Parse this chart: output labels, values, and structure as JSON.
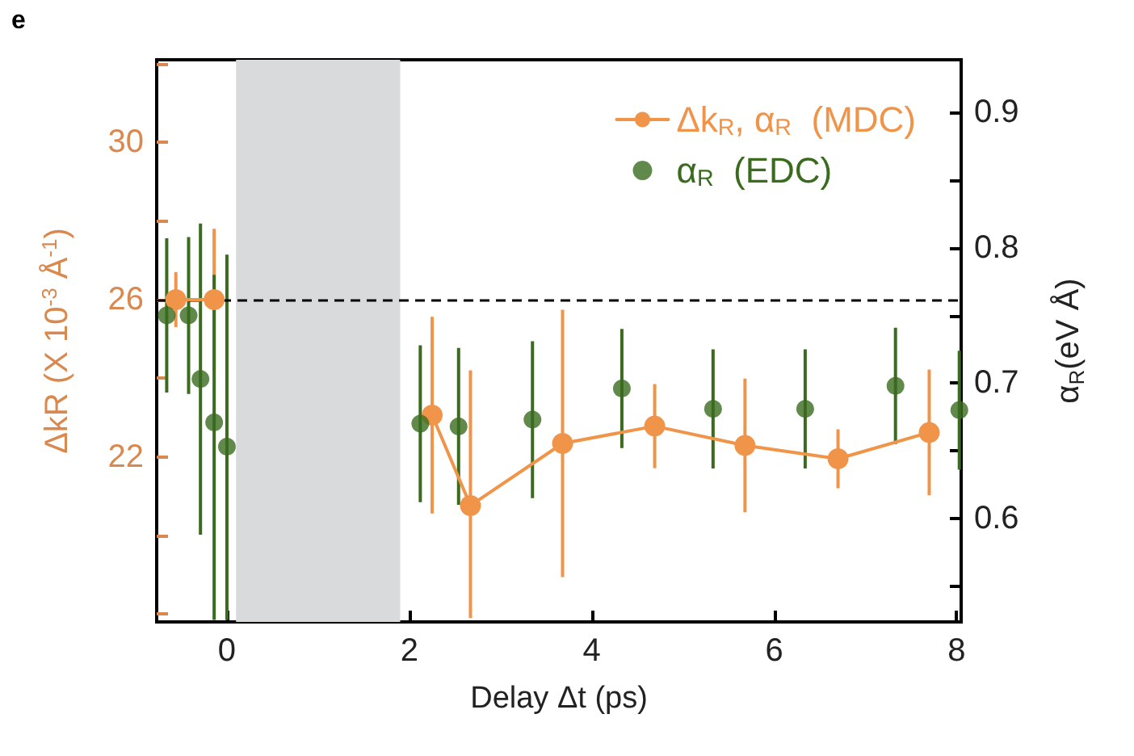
{
  "chart_data": {
    "type": "line",
    "title": "e",
    "xlabel": "Delay Δt (ps)",
    "ylabel": "ΔkR (X 10$^{-3}$ Å$^{-1}$)",
    "y2label": "α$_{R}$(eV Å)",
    "xlim": [
      -0.77,
      8.05
    ],
    "xticks": [
      0,
      2,
      4,
      6,
      8
    ],
    "ylim": [
      17.8,
      32.1
    ],
    "yticks": [
      {
        "value": 18,
        "label": null
      },
      {
        "value": 20,
        "label": null
      },
      22,
      {
        "value": 24,
        "label": null
      },
      26,
      {
        "value": 28,
        "label": null
      },
      30,
      {
        "value": 32,
        "label": null
      }
    ],
    "y2lim": [
      0.5235,
      0.939
    ],
    "y2ticks": [
      {
        "value": 0.55,
        "label": null
      },
      0.6,
      {
        "value": 0.65,
        "label": null
      },
      0.7,
      {
        "value": 0.75,
        "label": null
      },
      0.8,
      {
        "value": 0.85,
        "label": null
      },
      0.9
    ],
    "series": [
      {
        "name": "Δk$_{R}$, α$_{R}$  (MDC)",
        "color": "#f0944a",
        "axis": "y",
        "x": [
          -0.56,
          -0.14,
          1.0,
          2.25,
          2.67,
          3.68,
          4.69,
          5.68,
          6.7,
          7.7
        ],
        "values": [
          26.0,
          26.0,
          null,
          23.06,
          20.76,
          22.34,
          22.78,
          22.29,
          21.95,
          22.62
        ],
        "errors": [
          0.7,
          1.8,
          null,
          2.5,
          [
            17.9,
            24.2
          ],
          3.4,
          1.07,
          1.7,
          0.75,
          1.6
        ]
      },
      {
        "name": "α$_{R}$  (EDC)",
        "type": "scatter",
        "color": "#3a6b1e",
        "axis": "y2",
        "x": [
          -0.66,
          -0.42,
          -0.29,
          -0.14,
          0.0,
          2.12,
          2.54,
          3.35,
          4.33,
          5.33,
          6.34,
          7.33,
          8.03
        ],
        "values": [
          0.75,
          0.75,
          0.703,
          0.671,
          0.653,
          0.67,
          0.668,
          0.673,
          0.696,
          0.681,
          0.681,
          0.698,
          0.68
        ],
        "errors": [
          0.057,
          0.058,
          0.115,
          [
            0.525,
            0.78
          ],
          [
            0.525,
            0.795
          ],
          0.058,
          0.058,
          0.058,
          0.044,
          0.044,
          0.044,
          0.043,
          0.044
        ]
      }
    ],
    "ref_lines": [
      {
        "axis": "y",
        "value": 26,
        "label": null,
        "color": "#000000",
        "line_style": "dashed"
      }
    ],
    "bands": [
      {
        "axis": "x",
        "from": 0.1,
        "to": 1.9,
        "label": null,
        "color": "#d9dadc"
      }
    ],
    "marker": "circle",
    "grid": false,
    "legend": "top right"
  }
}
